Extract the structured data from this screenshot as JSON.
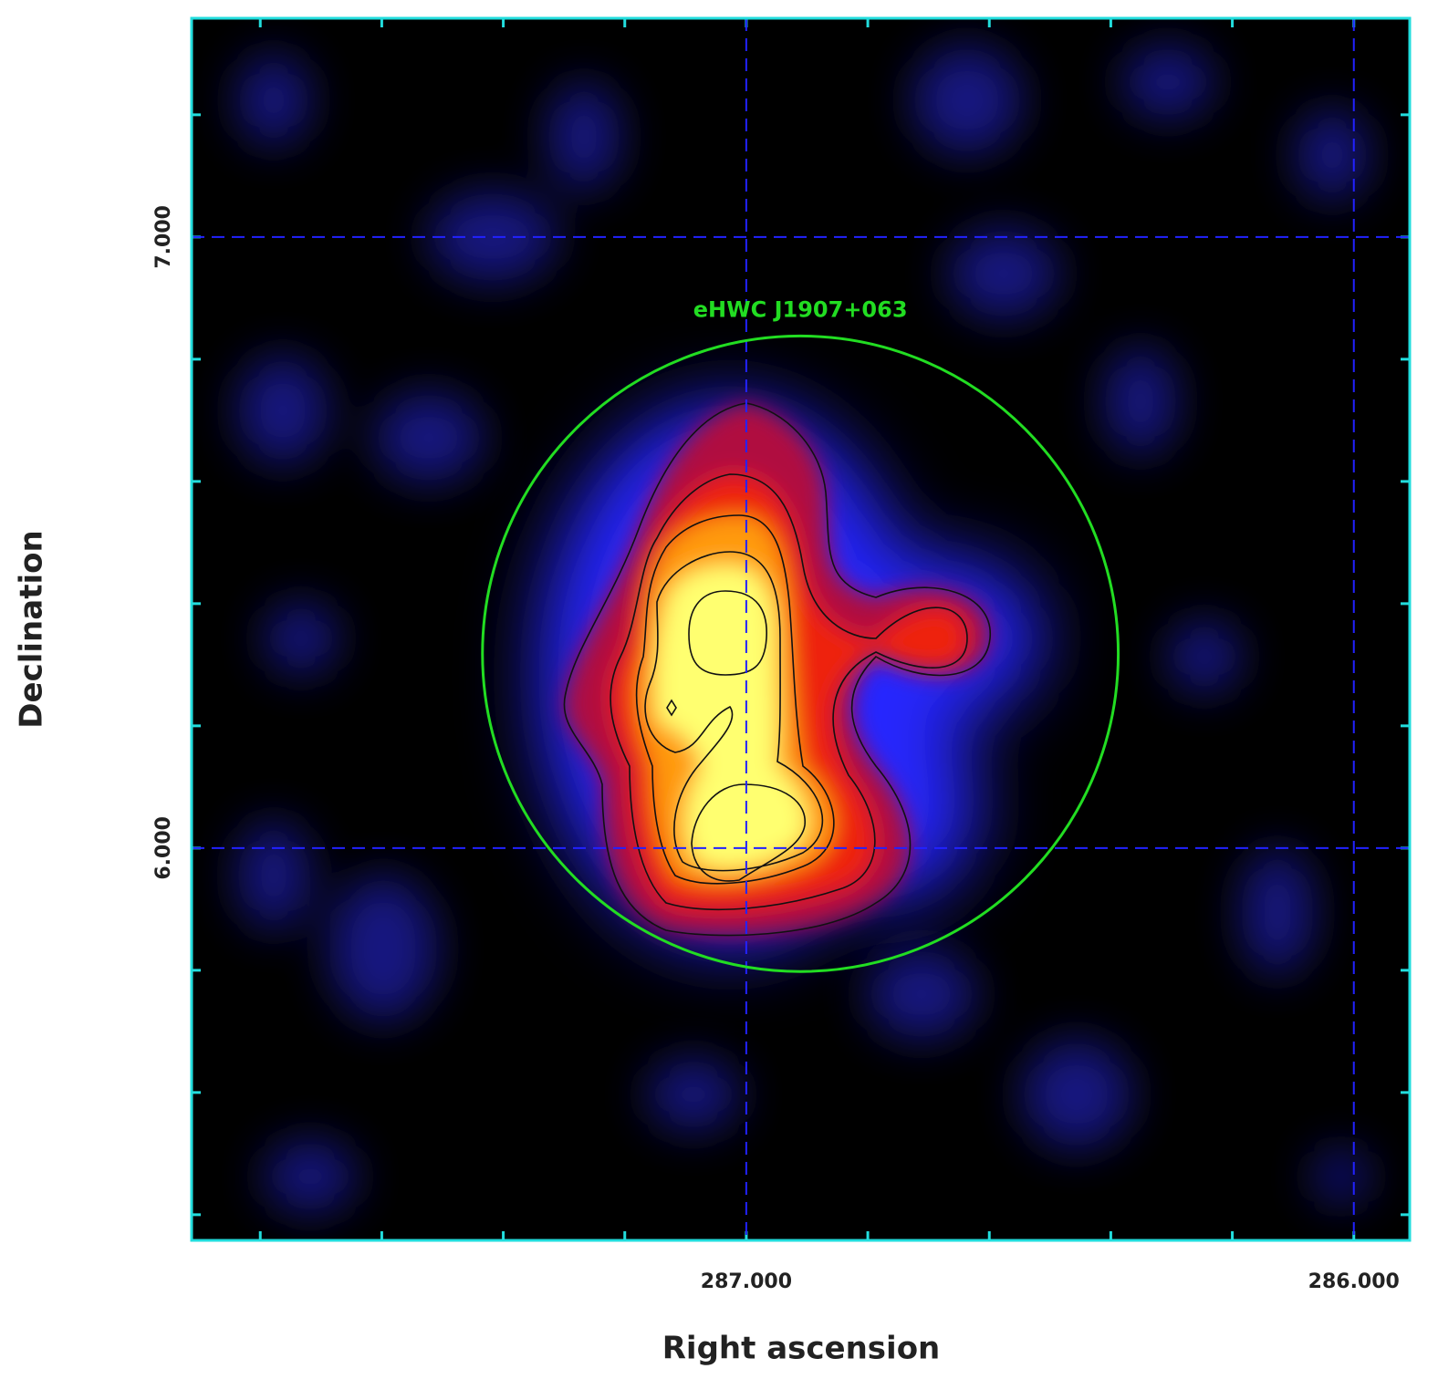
{
  "chart_data": {
    "type": "skymap",
    "xlabel": "Right ascension",
    "ylabel": "Declination",
    "xlim": [
      287.913,
      285.908
    ],
    "ylim": [
      5.358,
      7.358
    ],
    "xticks": [
      {
        "value": 287,
        "label": "287.000"
      },
      {
        "value": 286,
        "label": "286.000"
      }
    ],
    "yticks": [
      {
        "value": 7,
        "label": "7.000"
      },
      {
        "value": 6,
        "label": "6.000"
      }
    ],
    "grid": true,
    "sources": [
      {
        "name": "eHWC J1907+063",
        "ra": 286.911,
        "dec": 6.318,
        "radius": 0.52,
        "color": "#22dd22"
      }
    ]
  }
}
